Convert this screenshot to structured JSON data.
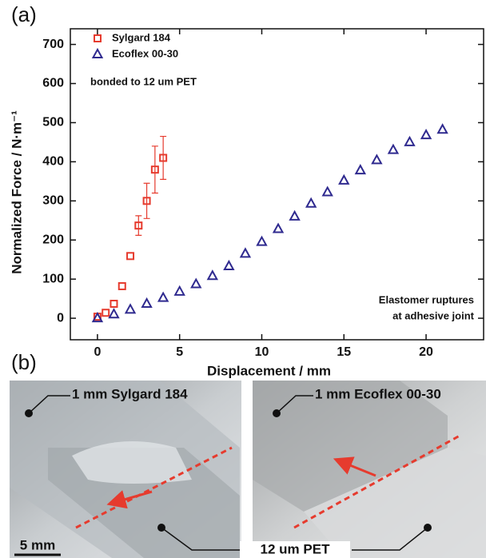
{
  "chart_data": {
    "type": "scatter",
    "panel_label": "(a)",
    "x_label": "Displacement / mm",
    "y_label": "Normalized Force / N·m⁻¹",
    "xlim": [
      -1.65,
      23.5
    ],
    "ylim": [
      -55,
      740
    ],
    "xticks": [
      0,
      5,
      10,
      15,
      20
    ],
    "yticks": [
      0,
      100,
      200,
      300,
      400,
      500,
      600,
      700
    ],
    "annotations": [
      "bonded to 12 um PET",
      "Elastomer ruptures",
      "at adhesive joint"
    ],
    "series": [
      {
        "name": "Sylgard 184",
        "color": "#e63b2e",
        "marker": "square",
        "x": [
          0,
          0.5,
          1,
          1.5,
          2,
          2.5,
          3,
          3.5,
          4
        ],
        "values": [
          4,
          14,
          37,
          82,
          159,
          237,
          300,
          380,
          410
        ],
        "errors": [
          null,
          null,
          null,
          null,
          null,
          25,
          45,
          60,
          55
        ]
      },
      {
        "name": "Ecoflex 00-30",
        "color": "#2f2a8f",
        "marker": "triangle",
        "x": [
          0,
          1,
          2,
          3,
          4,
          5,
          6,
          7,
          8,
          9,
          10,
          11,
          12,
          13,
          14,
          15,
          16,
          17,
          18,
          19,
          20,
          21
        ],
        "values": [
          0,
          10,
          22,
          37,
          52,
          68,
          87,
          108,
          133,
          165,
          195,
          228,
          260,
          293,
          322,
          352,
          378,
          404,
          430,
          450,
          468,
          482
        ]
      }
    ]
  },
  "panel_b": {
    "label": "(b)",
    "left_label": "1 mm Sylgard 184",
    "right_label": "1 mm Ecoflex 00-30",
    "substrate_label": "12 um PET",
    "scale_bar": "5 mm"
  }
}
